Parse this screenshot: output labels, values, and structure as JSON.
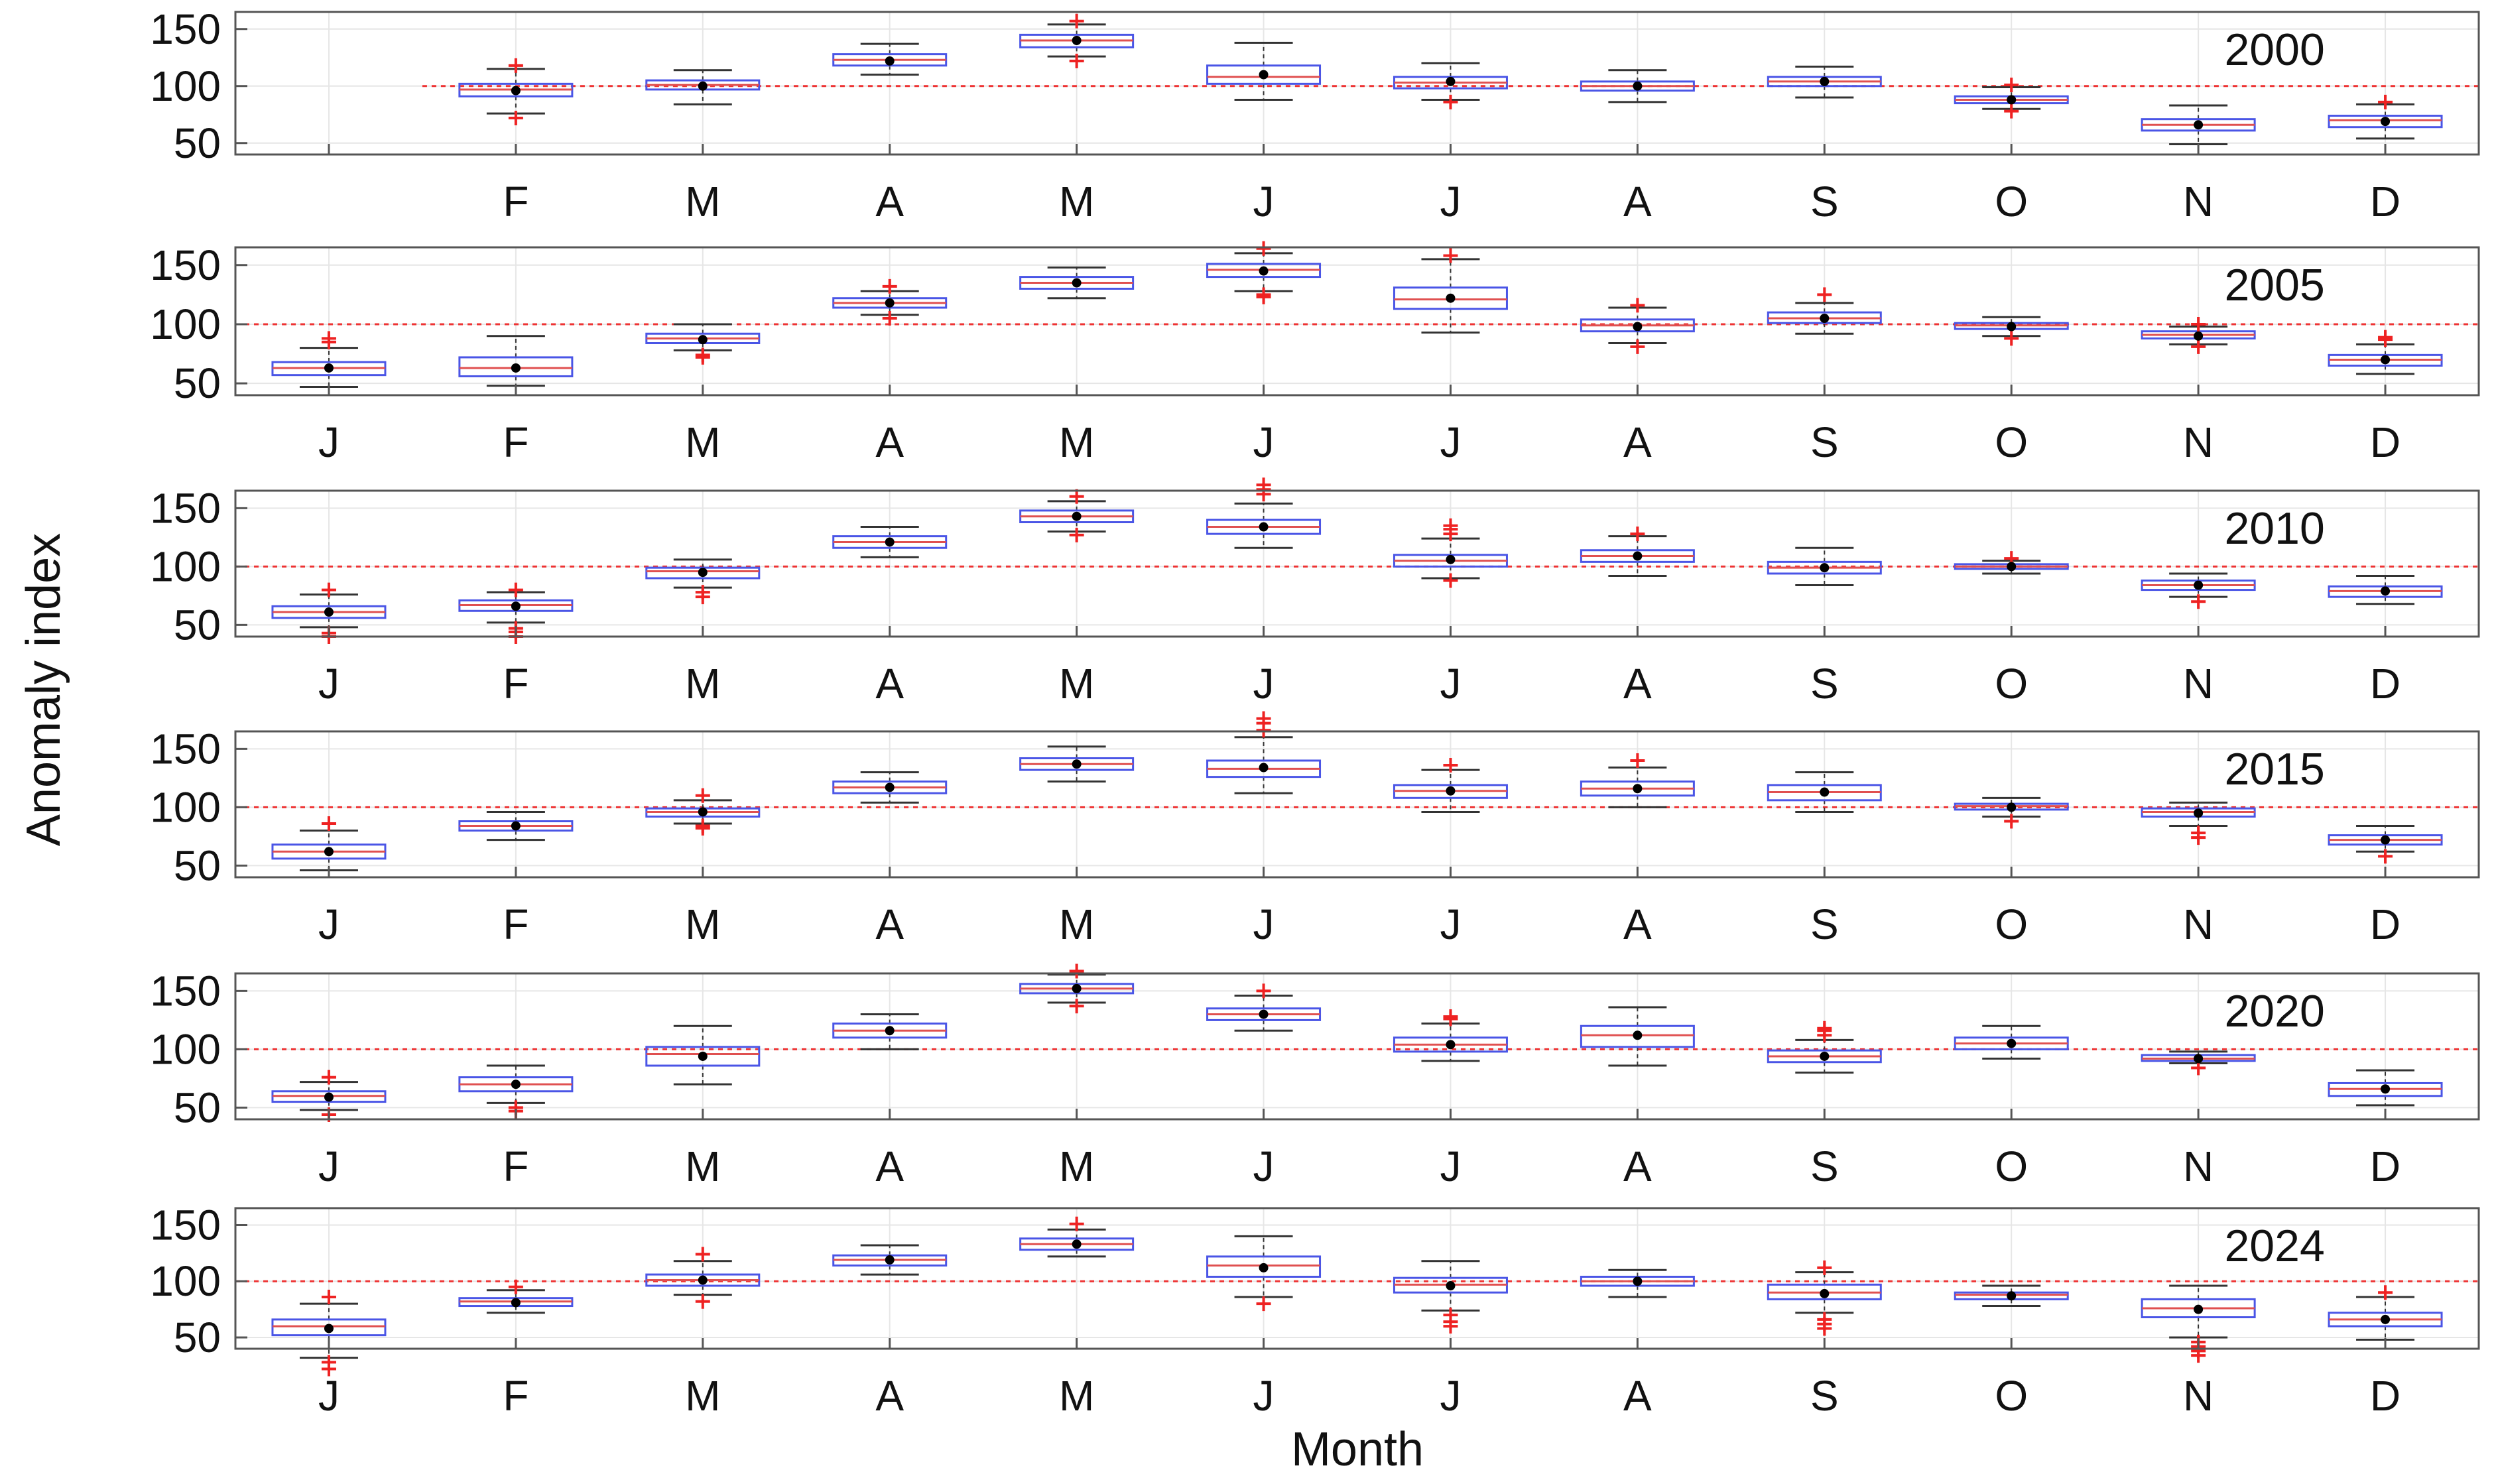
{
  "chart_data": {
    "type": "box",
    "xlabel": "Month",
    "ylabel": "Anomaly index",
    "categories": [
      "J",
      "F",
      "M",
      "A",
      "M",
      "J",
      "J",
      "A",
      "S",
      "O",
      "N",
      "D"
    ],
    "ylim": [
      40,
      165
    ],
    "yticks": [
      50,
      100,
      150
    ],
    "reference_line": 100,
    "grid": true,
    "colors": {
      "box": "#4a55e6",
      "median": "#e05050",
      "whisker": "#333333",
      "outlier": "#ee2222",
      "mean": "#000000",
      "reference": "#ee3333"
    },
    "panels": [
      {
        "label": "2000",
        "show_first_tick": false,
        "boxes": [
          null,
          {
            "whislo": 76,
            "q1": 91,
            "med": 97,
            "q3": 102,
            "whishi": 115,
            "mean": 96,
            "fliers": [
              118,
              72
            ]
          },
          {
            "whislo": 84,
            "q1": 97,
            "med": 101,
            "q3": 105,
            "whishi": 114,
            "mean": 100
          },
          {
            "whislo": 110,
            "q1": 118,
            "med": 123,
            "q3": 128,
            "whishi": 137,
            "mean": 122
          },
          {
            "whislo": 126,
            "q1": 134,
            "med": 140,
            "q3": 145,
            "whishi": 154,
            "mean": 140,
            "fliers": [
              157,
              122
            ]
          },
          {
            "whislo": 88,
            "q1": 102,
            "med": 108,
            "q3": 118,
            "whishi": 138,
            "mean": 110
          },
          {
            "whislo": 88,
            "q1": 98,
            "med": 103,
            "q3": 108,
            "whishi": 120,
            "mean": 104,
            "fliers": [
              86
            ]
          },
          {
            "whislo": 86,
            "q1": 96,
            "med": 100,
            "q3": 104,
            "whishi": 114,
            "mean": 100
          },
          {
            "whislo": 90,
            "q1": 100,
            "med": 104,
            "q3": 108,
            "whishi": 117,
            "mean": 104
          },
          {
            "whislo": 80,
            "q1": 85,
            "med": 88,
            "q3": 91,
            "whishi": 99,
            "mean": 88,
            "fliers": [
              101,
              78
            ]
          },
          {
            "whislo": 49,
            "q1": 61,
            "med": 66,
            "q3": 71,
            "whishi": 83,
            "mean": 66
          },
          {
            "whislo": 54,
            "q1": 64,
            "med": 70,
            "q3": 74,
            "whishi": 84,
            "mean": 69,
            "fliers": [
              86
            ]
          }
        ]
      },
      {
        "label": "2005",
        "show_first_tick": true,
        "boxes": [
          {
            "whislo": 47,
            "q1": 57,
            "med": 63,
            "q3": 68,
            "whishi": 80,
            "mean": 63,
            "fliers": [
              85,
              88
            ]
          },
          {
            "whislo": 48,
            "q1": 56,
            "med": 63,
            "q3": 72,
            "whishi": 90,
            "mean": 63
          },
          {
            "whislo": 78,
            "q1": 84,
            "med": 88,
            "q3": 92,
            "whishi": 100,
            "mean": 87,
            "fliers": [
              74,
              72
            ]
          },
          {
            "whislo": 108,
            "q1": 114,
            "med": 118,
            "q3": 122,
            "whishi": 128,
            "mean": 118,
            "fliers": [
              132,
              105
            ]
          },
          {
            "whislo": 122,
            "q1": 130,
            "med": 135,
            "q3": 140,
            "whishi": 148,
            "mean": 135
          },
          {
            "whislo": 128,
            "q1": 140,
            "med": 146,
            "q3": 151,
            "whishi": 160,
            "mean": 145,
            "fliers": [
              125,
              123,
              164
            ]
          },
          {
            "whislo": 93,
            "q1": 113,
            "med": 121,
            "q3": 131,
            "whishi": 155,
            "mean": 122,
            "fliers": [
              158
            ]
          },
          {
            "whislo": 84,
            "q1": 94,
            "med": 99,
            "q3": 104,
            "whishi": 114,
            "mean": 98,
            "fliers": [
              116,
              81
            ]
          },
          {
            "whislo": 92,
            "q1": 101,
            "med": 105,
            "q3": 110,
            "whishi": 118,
            "mean": 105,
            "fliers": [
              125
            ]
          },
          {
            "whislo": 90,
            "q1": 96,
            "med": 99,
            "q3": 101,
            "whishi": 106,
            "mean": 98,
            "fliers": [
              88
            ]
          },
          {
            "whislo": 83,
            "q1": 88,
            "med": 91,
            "q3": 94,
            "whishi": 98,
            "mean": 90,
            "fliers": [
              100,
              81
            ]
          },
          {
            "whislo": 58,
            "q1": 65,
            "med": 70,
            "q3": 74,
            "whishi": 83,
            "mean": 70,
            "fliers": [
              87,
              89
            ]
          }
        ]
      },
      {
        "label": "2010",
        "show_first_tick": true,
        "boxes": [
          {
            "whislo": 48,
            "q1": 56,
            "med": 61,
            "q3": 66,
            "whishi": 76,
            "mean": 61,
            "fliers": [
              80,
              43,
              40
            ]
          },
          {
            "whislo": 52,
            "q1": 62,
            "med": 67,
            "q3": 71,
            "whishi": 78,
            "mean": 66,
            "fliers": [
              47,
              44,
              40,
              80
            ]
          },
          {
            "whislo": 82,
            "q1": 90,
            "med": 96,
            "q3": 99,
            "whishi": 106,
            "mean": 95,
            "fliers": [
              78,
              74
            ]
          },
          {
            "whislo": 108,
            "q1": 116,
            "med": 121,
            "q3": 126,
            "whishi": 134,
            "mean": 121
          },
          {
            "whislo": 130,
            "q1": 138,
            "med": 143,
            "q3": 148,
            "whishi": 156,
            "mean": 143,
            "fliers": [
              160,
              127
            ]
          },
          {
            "whislo": 116,
            "q1": 128,
            "med": 134,
            "q3": 140,
            "whishi": 154,
            "mean": 134,
            "fliers": [
              162,
              166,
              170
            ]
          },
          {
            "whislo": 90,
            "q1": 100,
            "med": 105,
            "q3": 110,
            "whishi": 124,
            "mean": 106,
            "fliers": [
              128,
              132,
              135,
              88
            ]
          },
          {
            "whislo": 92,
            "q1": 104,
            "med": 109,
            "q3": 114,
            "whishi": 126,
            "mean": 109,
            "fliers": [
              128
            ]
          },
          {
            "whislo": 84,
            "q1": 94,
            "med": 99,
            "q3": 104,
            "whishi": 116,
            "mean": 99
          },
          {
            "whislo": 94,
            "q1": 98,
            "med": 100,
            "q3": 102,
            "whishi": 105,
            "mean": 100,
            "fliers": [
              107
            ]
          },
          {
            "whislo": 74,
            "q1": 80,
            "med": 84,
            "q3": 88,
            "whishi": 94,
            "mean": 84,
            "fliers": [
              70
            ]
          },
          {
            "whislo": 68,
            "q1": 74,
            "med": 79,
            "q3": 83,
            "whishi": 92,
            "mean": 79
          }
        ]
      },
      {
        "label": "2015",
        "show_first_tick": true,
        "boxes": [
          {
            "whislo": 46,
            "q1": 56,
            "med": 62,
            "q3": 68,
            "whishi": 80,
            "mean": 62,
            "fliers": [
              86
            ]
          },
          {
            "whislo": 72,
            "q1": 80,
            "med": 84,
            "q3": 88,
            "whishi": 96,
            "mean": 84
          },
          {
            "whislo": 86,
            "q1": 92,
            "med": 96,
            "q3": 99,
            "whishi": 106,
            "mean": 96,
            "fliers": [
              110,
              84,
              82
            ]
          },
          {
            "whislo": 104,
            "q1": 112,
            "med": 117,
            "q3": 122,
            "whishi": 130,
            "mean": 117
          },
          {
            "whislo": 122,
            "q1": 132,
            "med": 137,
            "q3": 142,
            "whishi": 152,
            "mean": 137
          },
          {
            "whislo": 112,
            "q1": 126,
            "med": 133,
            "q3": 140,
            "whishi": 160,
            "mean": 134,
            "fliers": [
              166,
              172,
              176
            ]
          },
          {
            "whislo": 96,
            "q1": 108,
            "med": 114,
            "q3": 119,
            "whishi": 132,
            "mean": 114,
            "fliers": [
              136
            ]
          },
          {
            "whislo": 100,
            "q1": 110,
            "med": 116,
            "q3": 122,
            "whishi": 134,
            "mean": 116,
            "fliers": [
              140
            ]
          },
          {
            "whislo": 96,
            "q1": 106,
            "med": 113,
            "q3": 119,
            "whishi": 130,
            "mean": 113
          },
          {
            "whislo": 92,
            "q1": 98,
            "med": 101,
            "q3": 103,
            "whishi": 108,
            "mean": 100,
            "fliers": [
              88
            ]
          },
          {
            "whislo": 84,
            "q1": 92,
            "med": 96,
            "q3": 99,
            "whishi": 104,
            "mean": 95,
            "fliers": [
              78,
              74
            ]
          },
          {
            "whislo": 62,
            "q1": 68,
            "med": 72,
            "q3": 76,
            "whishi": 84,
            "mean": 72,
            "fliers": [
              58
            ]
          }
        ]
      },
      {
        "label": "2020",
        "show_first_tick": true,
        "boxes": [
          {
            "whislo": 48,
            "q1": 55,
            "med": 60,
            "q3": 64,
            "whishi": 72,
            "mean": 59,
            "fliers": [
              76,
              44
            ]
          },
          {
            "whislo": 54,
            "q1": 64,
            "med": 70,
            "q3": 76,
            "whishi": 86,
            "mean": 70,
            "fliers": [
              50,
              47
            ]
          },
          {
            "whislo": 70,
            "q1": 86,
            "med": 96,
            "q3": 102,
            "whishi": 120,
            "mean": 94
          },
          {
            "whislo": 100,
            "q1": 110,
            "med": 116,
            "q3": 122,
            "whishi": 130,
            "mean": 116
          },
          {
            "whislo": 140,
            "q1": 148,
            "med": 152,
            "q3": 156,
            "whishi": 164,
            "mean": 152,
            "fliers": [
              167,
              137
            ]
          },
          {
            "whislo": 116,
            "q1": 125,
            "med": 130,
            "q3": 135,
            "whishi": 146,
            "mean": 130,
            "fliers": [
              150
            ]
          },
          {
            "whislo": 90,
            "q1": 98,
            "med": 104,
            "q3": 110,
            "whishi": 122,
            "mean": 104,
            "fliers": [
              126,
              128
            ]
          },
          {
            "whislo": 86,
            "q1": 102,
            "med": 112,
            "q3": 120,
            "whishi": 136,
            "mean": 112
          },
          {
            "whislo": 80,
            "q1": 89,
            "med": 94,
            "q3": 99,
            "whishi": 108,
            "mean": 94,
            "fliers": [
              112,
              116,
              118
            ]
          },
          {
            "whislo": 92,
            "q1": 100,
            "med": 105,
            "q3": 110,
            "whishi": 120,
            "mean": 105
          },
          {
            "whislo": 88,
            "q1": 90,
            "med": 92,
            "q3": 95,
            "whishi": 98,
            "mean": 92,
            "fliers": [
              84
            ]
          },
          {
            "whislo": 52,
            "q1": 60,
            "med": 66,
            "q3": 71,
            "whishi": 82,
            "mean": 66
          }
        ]
      },
      {
        "label": "2024",
        "show_first_tick": true,
        "boxes": [
          {
            "whislo": 32,
            "q1": 52,
            "med": 60,
            "q3": 66,
            "whishi": 80,
            "mean": 58,
            "fliers": [
              86,
              28,
              22
            ]
          },
          {
            "whislo": 72,
            "q1": 78,
            "med": 82,
            "q3": 85,
            "whishi": 92,
            "mean": 81,
            "fliers": [
              95
            ]
          },
          {
            "whislo": 88,
            "q1": 96,
            "med": 101,
            "q3": 106,
            "whishi": 118,
            "mean": 101,
            "fliers": [
              124,
              82
            ]
          },
          {
            "whislo": 106,
            "q1": 114,
            "med": 119,
            "q3": 123,
            "whishi": 132,
            "mean": 119
          },
          {
            "whislo": 122,
            "q1": 128,
            "med": 133,
            "q3": 138,
            "whishi": 146,
            "mean": 133,
            "fliers": [
              151
            ]
          },
          {
            "whislo": 86,
            "q1": 104,
            "med": 114,
            "q3": 122,
            "whishi": 140,
            "mean": 112,
            "fliers": [
              80
            ]
          },
          {
            "whislo": 74,
            "q1": 90,
            "med": 97,
            "q3": 103,
            "whishi": 118,
            "mean": 96,
            "fliers": [
              70,
              64,
              60
            ]
          },
          {
            "whislo": 86,
            "q1": 96,
            "med": 100,
            "q3": 104,
            "whishi": 110,
            "mean": 100
          },
          {
            "whislo": 72,
            "q1": 84,
            "med": 90,
            "q3": 97,
            "whishi": 108,
            "mean": 89,
            "fliers": [
              112,
              66,
              62,
              58
            ]
          },
          {
            "whislo": 78,
            "q1": 84,
            "med": 88,
            "q3": 90,
            "whishi": 96,
            "mean": 87
          },
          {
            "whislo": 50,
            "q1": 68,
            "med": 76,
            "q3": 84,
            "whishi": 96,
            "mean": 75,
            "fliers": [
              46,
              42,
              38,
              34
            ]
          },
          {
            "whislo": 48,
            "q1": 60,
            "med": 66,
            "q3": 72,
            "whishi": 86,
            "mean": 66,
            "fliers": [
              90
            ]
          }
        ]
      }
    ]
  }
}
